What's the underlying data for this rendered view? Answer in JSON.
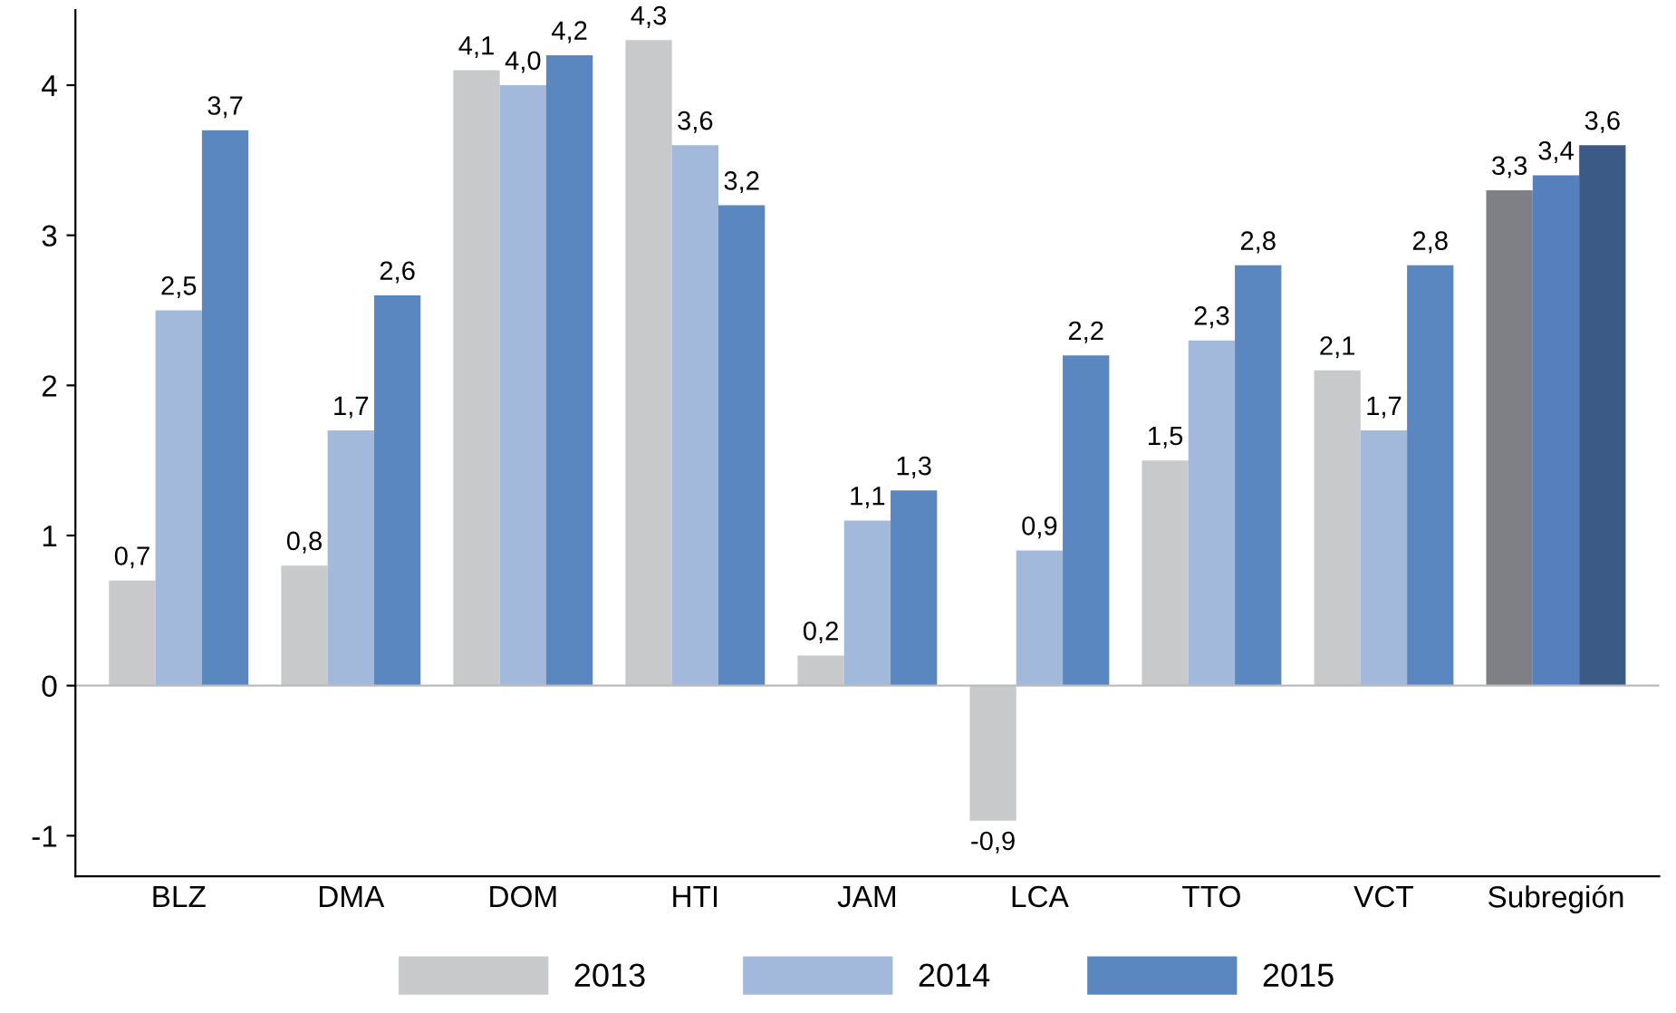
{
  "chart_data": {
    "type": "bar",
    "categories": [
      "BLZ",
      "DMA",
      "DOM",
      "HTI",
      "JAM",
      "LCA",
      "TTO",
      "VCT",
      "Subregión"
    ],
    "series": [
      {
        "name": "2013",
        "color": "#c8c9cb",
        "colors": [
          "#c8c9cb",
          "#c8c9cb",
          "#c8c9cb",
          "#c8c9cb",
          "#c8c9cb",
          "#c8c9cb",
          "#c8c9cb",
          "#c8c9cb",
          "#7f8085"
        ],
        "values": [
          0.7,
          0.8,
          4.1,
          4.3,
          0.2,
          -0.9,
          1.5,
          2.1,
          3.3
        ],
        "value_labels": [
          "0,7",
          "0,8",
          "4,1",
          "4,3",
          "0,2",
          "-0,9",
          "1,5",
          "2,1",
          "3,3"
        ]
      },
      {
        "name": "2014",
        "color": "#a3b9dc",
        "colors": [
          "#a3b9dc",
          "#a3b9dc",
          "#a3b9dc",
          "#a3b9dc",
          "#a3b9dc",
          "#a3b9dc",
          "#a3b9dc",
          "#a3b9dc",
          "#557fbd"
        ],
        "values": [
          2.5,
          1.7,
          4.0,
          3.6,
          1.1,
          0.9,
          2.3,
          1.7,
          3.4
        ],
        "value_labels": [
          "2,5",
          "1,7",
          "4,0",
          "3,6",
          "1,1",
          "0,9",
          "2,3",
          "1,7",
          "3,4"
        ]
      },
      {
        "name": "2015",
        "color": "#5b87c0",
        "colors": [
          "#5b87c0",
          "#5b87c0",
          "#5b87c0",
          "#5b87c0",
          "#5b87c0",
          "#5b87c0",
          "#5b87c0",
          "#5b87c0",
          "#3b5a86"
        ],
        "values": [
          3.7,
          2.6,
          4.2,
          3.2,
          1.3,
          2.2,
          2.8,
          2.8,
          3.6
        ],
        "value_labels": [
          "3,7",
          "2,6",
          "4,2",
          "3,2",
          "1,3",
          "2,2",
          "2,8",
          "2,8",
          "3,6"
        ]
      }
    ],
    "ylim": [
      -1.27,
      4.5
    ],
    "yticks": [
      -1,
      0,
      1,
      2,
      3,
      4
    ],
    "grid": false,
    "ref_lines": [
      {
        "axis": "y",
        "value": 0,
        "color": "#bbbbbb"
      }
    ],
    "legend": "bottom"
  }
}
